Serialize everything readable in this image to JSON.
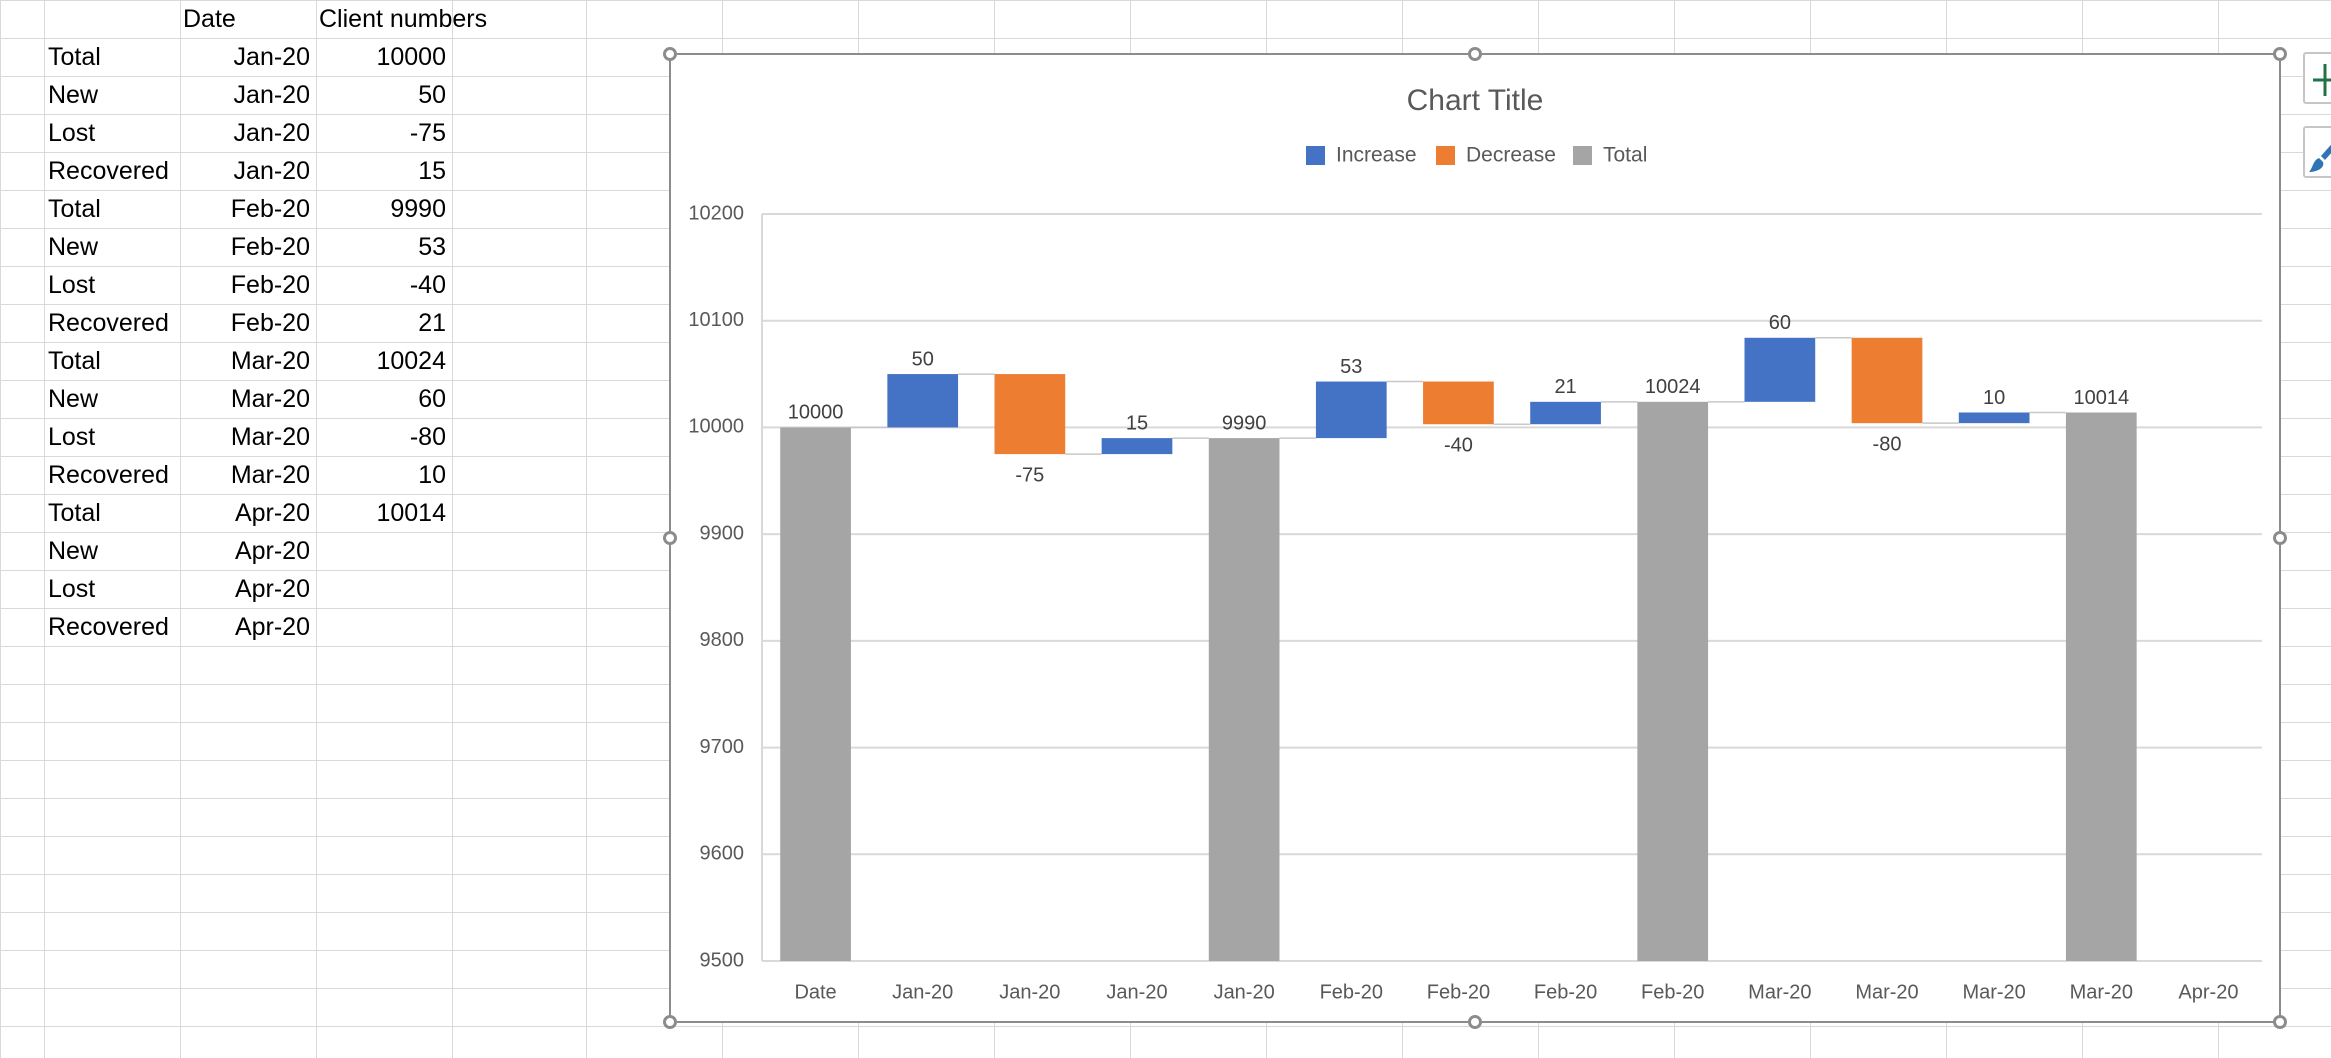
{
  "sheet": {
    "headers": [
      "",
      "Date",
      "Client numbers"
    ],
    "rows": [
      {
        "label": "Total",
        "date": "Jan-20",
        "value": "10000"
      },
      {
        "label": "New",
        "date": "Jan-20",
        "value": "50"
      },
      {
        "label": "Lost",
        "date": "Jan-20",
        "value": "-75"
      },
      {
        "label": "Recovered",
        "date": "Jan-20",
        "value": "15"
      },
      {
        "label": "Total",
        "date": "Feb-20",
        "value": "9990"
      },
      {
        "label": "New",
        "date": "Feb-20",
        "value": "53"
      },
      {
        "label": "Lost",
        "date": "Feb-20",
        "value": "-40"
      },
      {
        "label": "Recovered",
        "date": "Feb-20",
        "value": "21"
      },
      {
        "label": "Total",
        "date": "Mar-20",
        "value": "10024"
      },
      {
        "label": "New",
        "date": "Mar-20",
        "value": "60"
      },
      {
        "label": "Lost",
        "date": "Mar-20",
        "value": "-80"
      },
      {
        "label": "Recovered",
        "date": "Mar-20",
        "value": "10"
      },
      {
        "label": "Total",
        "date": "Apr-20",
        "value": "10014"
      },
      {
        "label": "New",
        "date": "Apr-20",
        "value": ""
      },
      {
        "label": "Lost",
        "date": "Apr-20",
        "value": ""
      },
      {
        "label": "Recovered",
        "date": "Apr-20",
        "value": ""
      }
    ]
  },
  "chart_data": {
    "type": "bar",
    "subtype": "waterfall",
    "title": "Chart Title",
    "xlabel": "",
    "ylabel": "",
    "ylim": [
      9500,
      10200
    ],
    "yticks": [
      9500,
      9600,
      9700,
      9800,
      9900,
      10000,
      10100,
      10200
    ],
    "grid": true,
    "legend_position": "top",
    "legend": [
      {
        "name": "Increase",
        "color": "#4472c4"
      },
      {
        "name": "Decrease",
        "color": "#ed7d31"
      },
      {
        "name": "Total",
        "color": "#a5a5a5"
      }
    ],
    "categories": [
      "Date",
      "Jan-20",
      "Jan-20",
      "Jan-20",
      "Jan-20",
      "Feb-20",
      "Feb-20",
      "Feb-20",
      "Feb-20",
      "Mar-20",
      "Mar-20",
      "Mar-20",
      "Mar-20",
      "Apr-20"
    ],
    "values": [
      10000,
      50,
      -75,
      15,
      9990,
      53,
      -40,
      21,
      10024,
      60,
      -80,
      10,
      10014,
      null
    ],
    "kinds": [
      "total",
      "increase",
      "decrease",
      "increase",
      "total",
      "increase",
      "decrease",
      "increase",
      "total",
      "increase",
      "decrease",
      "increase",
      "total",
      "none"
    ],
    "data_labels": [
      "10000",
      "50",
      "-75",
      "15",
      "9990",
      "53",
      "-40",
      "21",
      "10024",
      "60",
      "-80",
      "10",
      "10014",
      ""
    ]
  }
}
